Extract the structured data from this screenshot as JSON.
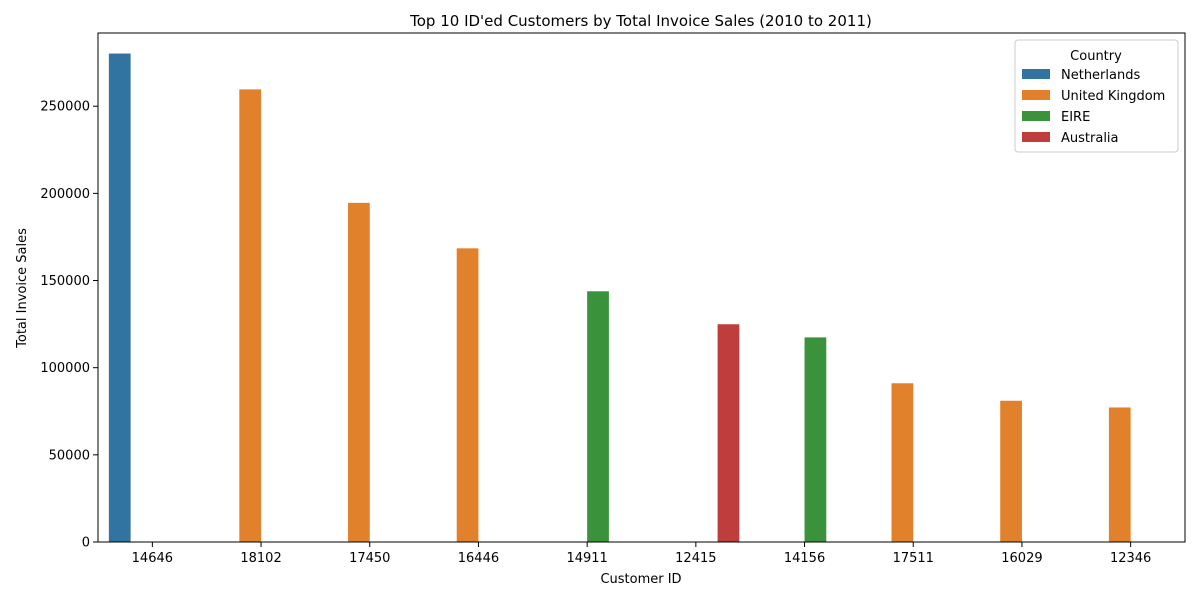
{
  "chart_data": {
    "type": "bar",
    "title": "Top 10 ID'ed Customers by Total Invoice Sales (2010 to 2011)",
    "xlabel": "Customer ID",
    "ylabel": "Total Invoice Sales",
    "categories": [
      "14646",
      "18102",
      "17450",
      "16446",
      "14911",
      "12415",
      "14156",
      "17511",
      "16029",
      "12346"
    ],
    "ylim": [
      0,
      292000
    ],
    "yticks": [
      0,
      50000,
      100000,
      150000,
      200000,
      250000
    ],
    "legend": {
      "title": "Country",
      "placement": "top-right"
    },
    "series": [
      {
        "name": "Netherlands",
        "color": "#3274a1",
        "values": [
          280206,
          null,
          null,
          null,
          null,
          null,
          null,
          null,
          null,
          null
        ]
      },
      {
        "name": "United Kingdom",
        "color": "#e1812c",
        "values": [
          null,
          259657,
          194551,
          168472,
          null,
          null,
          null,
          91062,
          81024,
          77183
        ]
      },
      {
        "name": "EIRE",
        "color": "#3a923a",
        "values": [
          null,
          null,
          null,
          null,
          143825,
          null,
          117379,
          null,
          null,
          null
        ]
      },
      {
        "name": "Australia",
        "color": "#c03d3e",
        "values": [
          null,
          null,
          null,
          null,
          null,
          124914,
          null,
          null,
          null,
          null
        ]
      }
    ],
    "grid": false
  }
}
